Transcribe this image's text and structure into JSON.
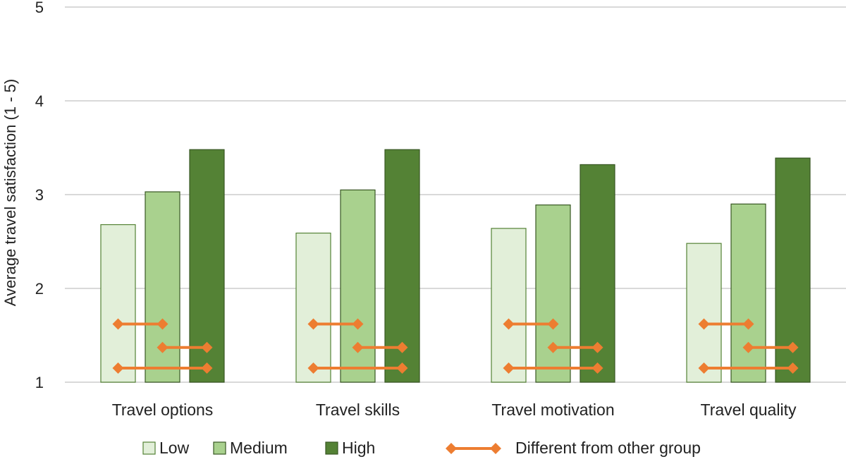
{
  "chart_data": {
    "type": "bar",
    "title": "",
    "xlabel": "",
    "ylabel": "Average travel satisfaction (1 - 5)",
    "ylim": [
      1,
      5
    ],
    "yticks": [
      1,
      2,
      3,
      4,
      5
    ],
    "grid": true,
    "legend_position": "bottom",
    "categories": [
      "Travel options",
      "Travel skills",
      "Travel motivation",
      "Travel quality"
    ],
    "series": [
      {
        "name": "Low",
        "values": [
          2.68,
          2.59,
          2.64,
          2.48
        ],
        "color": "#e2efd9",
        "stroke": "#548235"
      },
      {
        "name": "Medium",
        "values": [
          3.03,
          3.05,
          2.89,
          2.9
        ],
        "color": "#a9d18e",
        "stroke": "#385723"
      },
      {
        "name": "High",
        "values": [
          3.48,
          3.48,
          3.32,
          3.39
        ],
        "color": "#548235",
        "stroke": "#385723"
      }
    ],
    "difference_marker": {
      "name": "Different from other group",
      "color": "#ed7d31",
      "pairs": [
        {
          "from": "Low",
          "to": "Medium",
          "y": 1.62
        },
        {
          "from": "Medium",
          "to": "High",
          "y": 1.37
        },
        {
          "from": "Low",
          "to": "High",
          "y": 1.15
        }
      ]
    }
  }
}
